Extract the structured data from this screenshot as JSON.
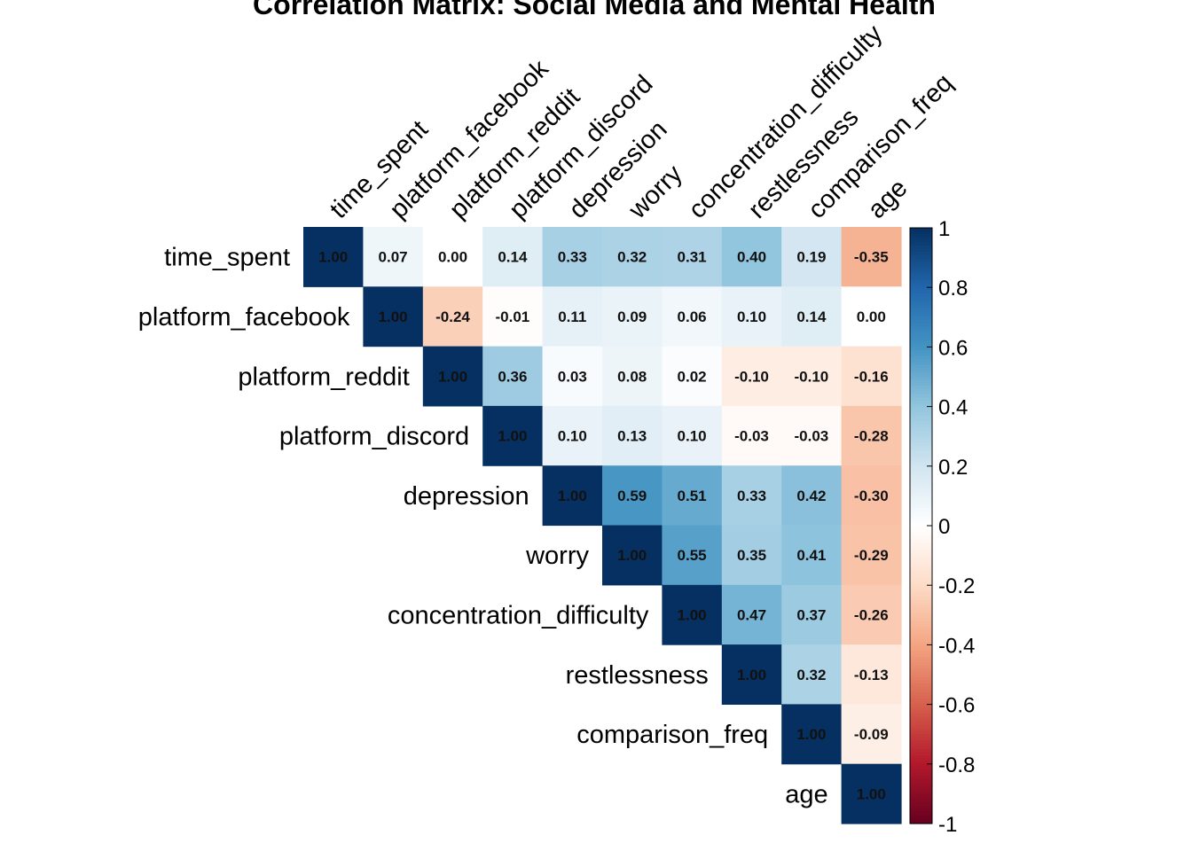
{
  "chart_data": {
    "type": "heatmap",
    "title": "Correlation Matrix: Social Media and Mental Health",
    "variables": [
      "time_spent",
      "platform_facebook",
      "platform_reddit",
      "platform_discord",
      "depression",
      "worry",
      "concentration_difficulty",
      "restlessness",
      "comparison_freq",
      "age"
    ],
    "matrix_shape": "upper-triangle",
    "values": [
      [
        1.0,
        0.07,
        0.0,
        0.14,
        0.33,
        0.32,
        0.31,
        0.4,
        0.19,
        -0.35
      ],
      [
        null,
        1.0,
        -0.24,
        -0.01,
        0.11,
        0.09,
        0.06,
        0.1,
        0.14,
        0.0
      ],
      [
        null,
        null,
        1.0,
        0.36,
        0.03,
        0.08,
        0.02,
        -0.1,
        -0.1,
        -0.16
      ],
      [
        null,
        null,
        null,
        1.0,
        0.1,
        0.13,
        0.1,
        -0.03,
        -0.03,
        -0.28
      ],
      [
        null,
        null,
        null,
        null,
        1.0,
        0.59,
        0.51,
        0.33,
        0.42,
        -0.3
      ],
      [
        null,
        null,
        null,
        null,
        null,
        1.0,
        0.55,
        0.35,
        0.41,
        -0.29
      ],
      [
        null,
        null,
        null,
        null,
        null,
        null,
        1.0,
        0.47,
        0.37,
        -0.26
      ],
      [
        null,
        null,
        null,
        null,
        null,
        null,
        null,
        1.0,
        0.32,
        -0.13
      ],
      [
        null,
        null,
        null,
        null,
        null,
        null,
        null,
        null,
        1.0,
        -0.09
      ],
      [
        null,
        null,
        null,
        null,
        null,
        null,
        null,
        null,
        null,
        1.0
      ]
    ],
    "colorbar": {
      "range": [
        -1,
        1
      ],
      "ticks": [
        "1",
        "0.8",
        "0.6",
        "0.4",
        "0.2",
        "0",
        "-0.2",
        "-0.4",
        "-0.6",
        "-0.8",
        "-1"
      ],
      "colors": [
        "#67001F",
        "#B2182B",
        "#D6604D",
        "#F4A582",
        "#FDDBC7",
        "#FFFFFF",
        "#D1E5F0",
        "#92C5DE",
        "#4393C3",
        "#2166AC",
        "#053061"
      ]
    }
  }
}
